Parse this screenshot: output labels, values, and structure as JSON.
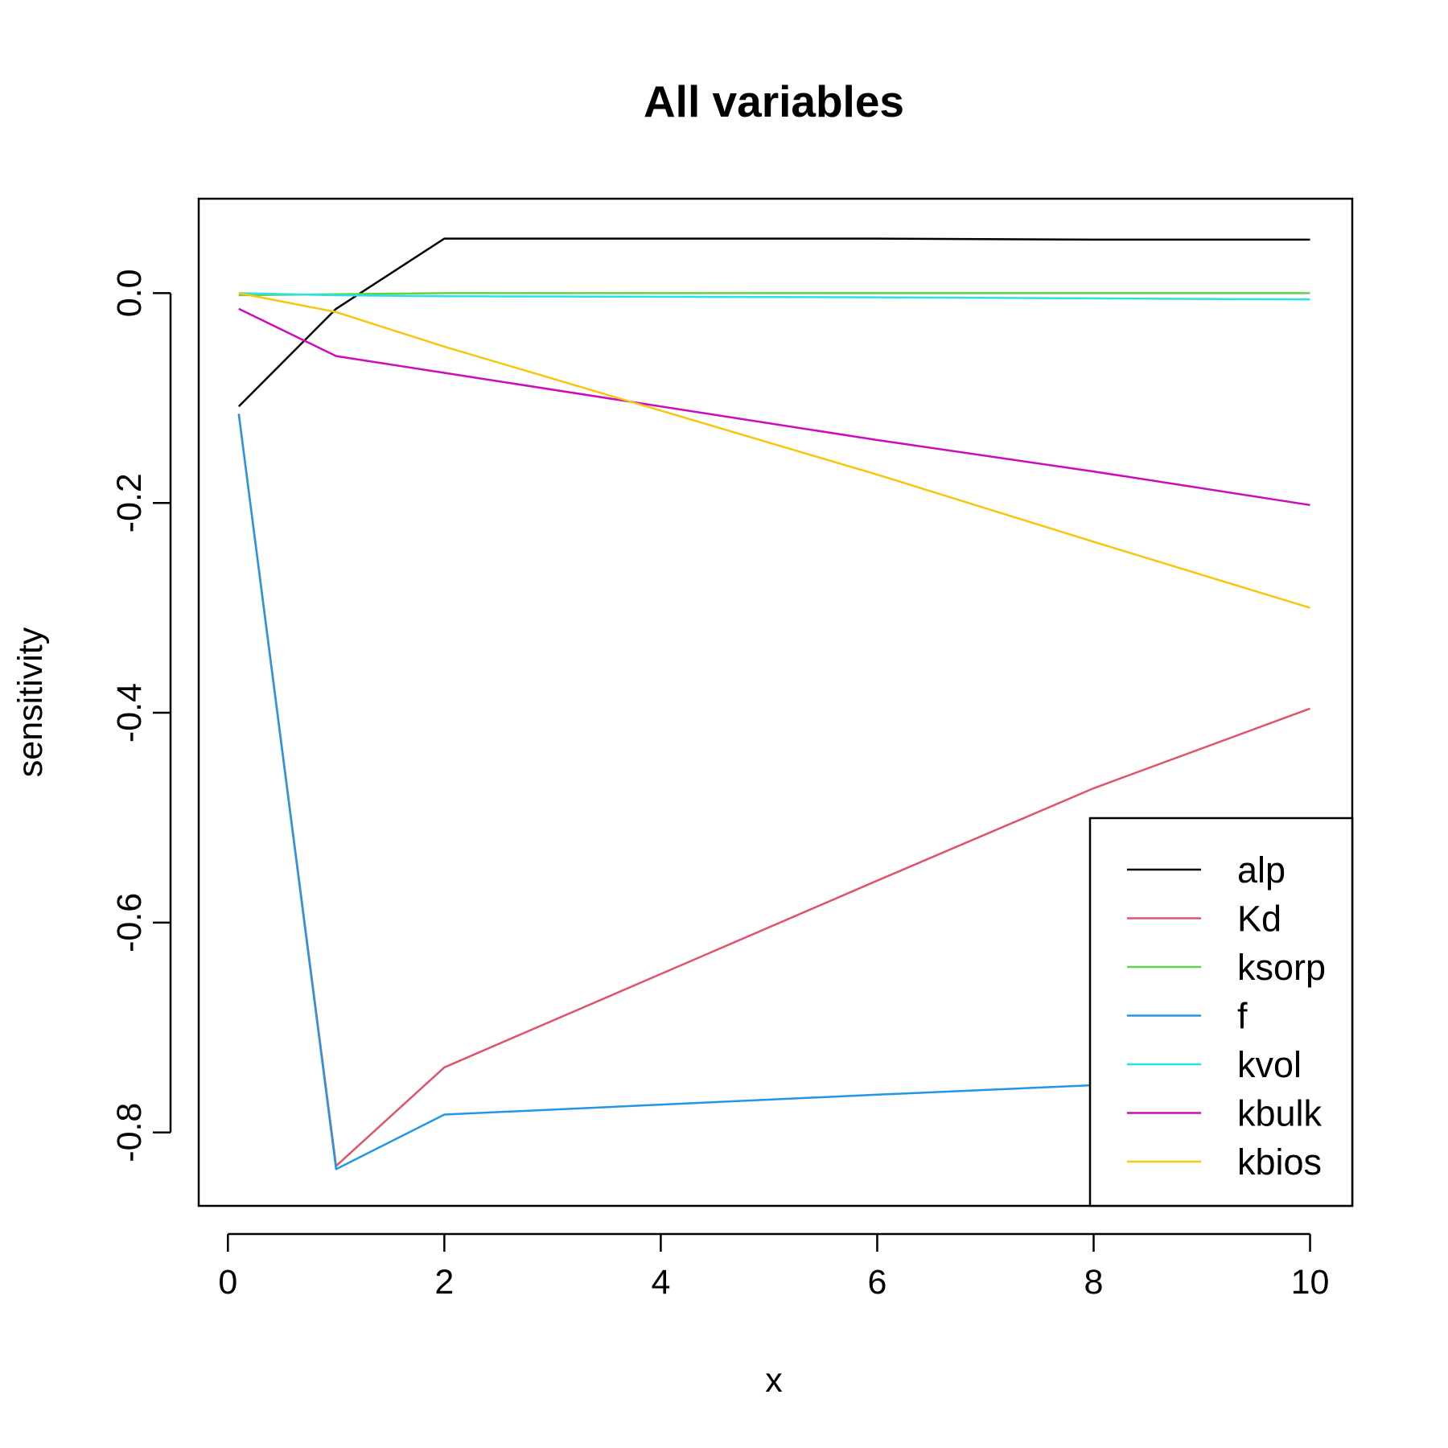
{
  "chart_data": {
    "type": "line",
    "title": "All variables",
    "xlabel": "x",
    "ylabel": "sensitivity",
    "xlim": [
      -0.27,
      10.39
    ],
    "ylim": [
      -0.87,
      0.09
    ],
    "xticks": [
      0,
      2,
      4,
      6,
      8,
      10
    ],
    "xtick_labels": [
      "0",
      "2",
      "4",
      "6",
      "8",
      "10"
    ],
    "yticks": [
      0.0,
      -0.2,
      -0.4,
      -0.6,
      -0.8
    ],
    "ytick_labels": [
      "0.0",
      "-0.2",
      "-0.4",
      "-0.6",
      "-0.8"
    ],
    "x": [
      0.1,
      1,
      2,
      6,
      8,
      10
    ],
    "series": [
      {
        "name": "alp",
        "color": "#000000",
        "values": [
          -0.108,
          -0.015,
          0.052,
          0.052,
          0.051,
          0.051
        ]
      },
      {
        "name": "Kd",
        "color": "#DF536B",
        "values": [
          -0.115,
          -0.832,
          -0.738,
          -0.56,
          -0.472,
          -0.396
        ]
      },
      {
        "name": "ksorp",
        "color": "#61D04F",
        "values": [
          -0.002,
          -0.001,
          0.0,
          0.0,
          0.0,
          0.0
        ]
      },
      {
        "name": "f",
        "color": "#2297E6",
        "values": [
          -0.115,
          -0.835,
          -0.783,
          -0.764,
          -0.755,
          -0.748
        ]
      },
      {
        "name": "kvol",
        "color": "#28E2E5",
        "values": [
          0.0,
          -0.002,
          -0.003,
          -0.004,
          -0.005,
          -0.006
        ]
      },
      {
        "name": "kbulk",
        "color": "#CD0BBC",
        "values": [
          -0.015,
          -0.06,
          -0.076,
          -0.14,
          -0.17,
          -0.202
        ]
      },
      {
        "name": "kbios",
        "color": "#F5C710",
        "values": [
          0.0,
          -0.018,
          -0.051,
          -0.173,
          -0.237,
          -0.3
        ]
      }
    ],
    "legend_position": "bottom-right",
    "grid": false
  }
}
